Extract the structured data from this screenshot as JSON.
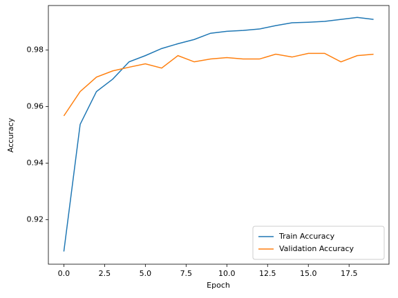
{
  "chart_data": {
    "type": "line",
    "x": [
      0,
      1,
      2,
      3,
      4,
      5,
      6,
      7,
      8,
      9,
      10,
      11,
      12,
      13,
      14,
      15,
      16,
      17,
      18,
      19
    ],
    "series": [
      {
        "name": "Train Accuracy",
        "color": "#1f77b4",
        "values": [
          0.9088,
          0.9537,
          0.9653,
          0.9697,
          0.9758,
          0.978,
          0.9805,
          0.9822,
          0.9837,
          0.9859,
          0.9866,
          0.9869,
          0.9874,
          0.9886,
          0.9896,
          0.9898,
          0.9901,
          0.9908,
          0.9915,
          0.9908
        ]
      },
      {
        "name": "Validation Accuracy",
        "color": "#ff7f0e",
        "values": [
          0.9567,
          0.9653,
          0.9704,
          0.9726,
          0.9739,
          0.9751,
          0.9736,
          0.978,
          0.9758,
          0.9768,
          0.9773,
          0.9768,
          0.9768,
          0.9785,
          0.9775,
          0.9788,
          0.9788,
          0.9758,
          0.978,
          0.9785
        ]
      }
    ],
    "x_label": "Epoch",
    "y_label": "Accuracy",
    "xlim": [
      -0.95,
      19.95
    ],
    "xticks": [
      {
        "value": 0,
        "label": "0.0"
      },
      2.5,
      {
        "value": 5,
        "label": "5.0"
      },
      7.5,
      {
        "value": 10,
        "label": "10.0"
      },
      12.5,
      {
        "value": 15,
        "label": "15.0"
      },
      17.5
    ],
    "ylim": [
      0.9043,
      0.9957
    ],
    "yticks": [
      0.92,
      0.94,
      0.96,
      0.98
    ],
    "legend": "lower right",
    "grid": false
  }
}
